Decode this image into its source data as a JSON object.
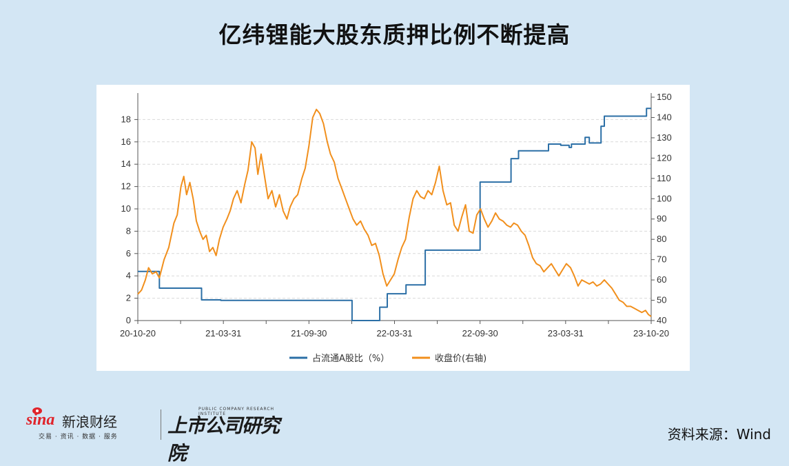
{
  "title": "亿纬锂能大股东质押比例不断提高",
  "chart_data": {
    "type": "line",
    "x_ticks": [
      "20-10-20",
      "21-03-31",
      "21-09-30",
      "22-03-31",
      "22-09-30",
      "23-03-31",
      "23-10-20"
    ],
    "y_left_ticks": [
      "0",
      "2",
      "4",
      "6",
      "8",
      "10",
      "12",
      "14",
      "16",
      "18"
    ],
    "y_right_ticks": [
      "40",
      "50",
      "60",
      "70",
      "80",
      "90",
      "100",
      "110",
      "120",
      "130",
      "140",
      "150"
    ],
    "y_left_range": [
      0,
      20
    ],
    "y_right_range": [
      40,
      150
    ],
    "grid": "horizontal dashed",
    "legend_position": "bottom",
    "series": [
      {
        "name": "占流通A股比（%）",
        "axis": "left",
        "color": "#2b6fa6",
        "step": true,
        "points": [
          [
            "2020-10-20",
            4.4
          ],
          [
            "2020-12-05",
            4.4
          ],
          [
            "2020-12-05",
            2.9
          ],
          [
            "2021-03-05",
            2.9
          ],
          [
            "2021-03-05",
            1.85
          ],
          [
            "2021-04-15",
            1.85
          ],
          [
            "2021-04-15",
            1.8
          ],
          [
            "2022-01-20",
            1.8
          ],
          [
            "2022-01-20",
            0.0
          ],
          [
            "2022-03-20",
            0.0
          ],
          [
            "2022-03-20",
            1.2
          ],
          [
            "2022-04-05",
            1.2
          ],
          [
            "2022-04-05",
            2.4
          ],
          [
            "2022-05-15",
            2.4
          ],
          [
            "2022-05-15",
            3.2
          ],
          [
            "2022-06-25",
            3.2
          ],
          [
            "2022-06-25",
            6.3
          ],
          [
            "2022-10-20",
            6.3
          ],
          [
            "2022-10-20",
            12.4
          ],
          [
            "2022-12-25",
            12.4
          ],
          [
            "2022-12-25",
            14.5
          ],
          [
            "2023-01-10",
            14.5
          ],
          [
            "2023-01-10",
            15.2
          ],
          [
            "2023-03-15",
            15.2
          ],
          [
            "2023-03-15",
            15.8
          ],
          [
            "2023-04-10",
            15.8
          ],
          [
            "2023-04-10",
            15.7
          ],
          [
            "2023-04-28",
            15.7
          ],
          [
            "2023-04-28",
            15.5
          ],
          [
            "2023-05-03",
            15.5
          ],
          [
            "2023-05-03",
            15.8
          ],
          [
            "2023-06-01",
            15.8
          ],
          [
            "2023-06-01",
            16.4
          ],
          [
            "2023-06-10",
            16.4
          ],
          [
            "2023-06-10",
            15.9
          ],
          [
            "2023-07-05",
            15.9
          ],
          [
            "2023-07-05",
            17.4
          ],
          [
            "2023-07-12",
            17.4
          ],
          [
            "2023-07-12",
            18.3
          ],
          [
            "2023-10-10",
            18.3
          ],
          [
            "2023-10-10",
            19.0
          ],
          [
            "2023-10-20",
            19.0
          ]
        ]
      },
      {
        "name": "收盘价(右轴)",
        "axis": "right",
        "color": "#f18f1c",
        "step": false,
        "points": [
          [
            "2020-10-20",
            53
          ],
          [
            "2020-10-28",
            55
          ],
          [
            "2020-11-05",
            60
          ],
          [
            "2020-11-12",
            66
          ],
          [
            "2020-11-20",
            63
          ],
          [
            "2020-11-28",
            64
          ],
          [
            "2020-12-05",
            61
          ],
          [
            "2020-12-15",
            70
          ],
          [
            "2020-12-25",
            76
          ],
          [
            "2021-01-05",
            88
          ],
          [
            "2021-01-12",
            92
          ],
          [
            "2021-01-20",
            106
          ],
          [
            "2021-01-26",
            111
          ],
          [
            "2021-02-01",
            102
          ],
          [
            "2021-02-08",
            108
          ],
          [
            "2021-02-15",
            100
          ],
          [
            "2021-02-22",
            89
          ],
          [
            "2021-03-01",
            84
          ],
          [
            "2021-03-08",
            80
          ],
          [
            "2021-03-15",
            82
          ],
          [
            "2021-03-22",
            74
          ],
          [
            "2021-03-29",
            76
          ],
          [
            "2021-04-05",
            72
          ],
          [
            "2021-04-12",
            80
          ],
          [
            "2021-04-20",
            86
          ],
          [
            "2021-04-28",
            90
          ],
          [
            "2021-05-05",
            94
          ],
          [
            "2021-05-12",
            100
          ],
          [
            "2021-05-20",
            104
          ],
          [
            "2021-05-28",
            98
          ],
          [
            "2021-06-05",
            107
          ],
          [
            "2021-06-12",
            114
          ],
          [
            "2021-06-20",
            128
          ],
          [
            "2021-06-27",
            125
          ],
          [
            "2021-07-03",
            112
          ],
          [
            "2021-07-10",
            122
          ],
          [
            "2021-07-18",
            110
          ],
          [
            "2021-07-25",
            100
          ],
          [
            "2021-08-02",
            104
          ],
          [
            "2021-08-10",
            96
          ],
          [
            "2021-08-18",
            102
          ],
          [
            "2021-08-26",
            94
          ],
          [
            "2021-09-03",
            90
          ],
          [
            "2021-09-10",
            96
          ],
          [
            "2021-09-18",
            100
          ],
          [
            "2021-09-26",
            102
          ],
          [
            "2021-10-05",
            110
          ],
          [
            "2021-10-12",
            115
          ],
          [
            "2021-10-20",
            126
          ],
          [
            "2021-10-28",
            140
          ],
          [
            "2021-11-05",
            144
          ],
          [
            "2021-11-12",
            142
          ],
          [
            "2021-11-20",
            137
          ],
          [
            "2021-11-28",
            128
          ],
          [
            "2021-12-05",
            122
          ],
          [
            "2021-12-13",
            118
          ],
          [
            "2021-12-21",
            110
          ],
          [
            "2021-12-29",
            105
          ],
          [
            "2022-01-06",
            100
          ],
          [
            "2022-01-14",
            95
          ],
          [
            "2022-01-22",
            90
          ],
          [
            "2022-01-30",
            87
          ],
          [
            "2022-02-07",
            89
          ],
          [
            "2022-02-15",
            85
          ],
          [
            "2022-02-23",
            82
          ],
          [
            "2022-03-03",
            77
          ],
          [
            "2022-03-11",
            78
          ],
          [
            "2022-03-19",
            72
          ],
          [
            "2022-03-27",
            63
          ],
          [
            "2022-04-04",
            57
          ],
          [
            "2022-04-12",
            60
          ],
          [
            "2022-04-20",
            63
          ],
          [
            "2022-04-28",
            70
          ],
          [
            "2022-05-06",
            76
          ],
          [
            "2022-05-14",
            80
          ],
          [
            "2022-05-22",
            91
          ],
          [
            "2022-05-30",
            100
          ],
          [
            "2022-06-07",
            104
          ],
          [
            "2022-06-15",
            101
          ],
          [
            "2022-06-23",
            100
          ],
          [
            "2022-07-01",
            104
          ],
          [
            "2022-07-09",
            102
          ],
          [
            "2022-07-17",
            108
          ],
          [
            "2022-07-25",
            116
          ],
          [
            "2022-08-02",
            104
          ],
          [
            "2022-08-10",
            97
          ],
          [
            "2022-08-18",
            98
          ],
          [
            "2022-08-26",
            87
          ],
          [
            "2022-09-03",
            84
          ],
          [
            "2022-09-11",
            91
          ],
          [
            "2022-09-19",
            97
          ],
          [
            "2022-09-27",
            84
          ],
          [
            "2022-10-05",
            83
          ],
          [
            "2022-10-13",
            92
          ],
          [
            "2022-10-21",
            95
          ],
          [
            "2022-10-29",
            90
          ],
          [
            "2022-11-06",
            86
          ],
          [
            "2022-11-14",
            89
          ],
          [
            "2022-11-22",
            93
          ],
          [
            "2022-11-30",
            90
          ],
          [
            "2022-12-08",
            89
          ],
          [
            "2022-12-16",
            87
          ],
          [
            "2022-12-24",
            86
          ],
          [
            "2022-12-31",
            88
          ],
          [
            "2023-01-08",
            87
          ],
          [
            "2023-01-16",
            84
          ],
          [
            "2023-01-24",
            82
          ],
          [
            "2023-02-01",
            77
          ],
          [
            "2023-02-09",
            71
          ],
          [
            "2023-02-17",
            68
          ],
          [
            "2023-02-25",
            67
          ],
          [
            "2023-03-05",
            64
          ],
          [
            "2023-03-13",
            66
          ],
          [
            "2023-03-21",
            68
          ],
          [
            "2023-03-29",
            65
          ],
          [
            "2023-04-06",
            62
          ],
          [
            "2023-04-14",
            65
          ],
          [
            "2023-04-22",
            68
          ],
          [
            "2023-05-01",
            66
          ],
          [
            "2023-05-09",
            62
          ],
          [
            "2023-05-17",
            57
          ],
          [
            "2023-05-25",
            60
          ],
          [
            "2023-06-02",
            59
          ],
          [
            "2023-06-10",
            58
          ],
          [
            "2023-06-18",
            59
          ],
          [
            "2023-06-26",
            57
          ],
          [
            "2023-07-04",
            58
          ],
          [
            "2023-07-12",
            60
          ],
          [
            "2023-07-20",
            58
          ],
          [
            "2023-07-28",
            56
          ],
          [
            "2023-08-05",
            53
          ],
          [
            "2023-08-13",
            50
          ],
          [
            "2023-08-21",
            49
          ],
          [
            "2023-08-29",
            47
          ],
          [
            "2023-09-06",
            47
          ],
          [
            "2023-09-14",
            46
          ],
          [
            "2023-09-22",
            45
          ],
          [
            "2023-09-30",
            44
          ],
          [
            "2023-10-08",
            45
          ],
          [
            "2023-10-14",
            43
          ],
          [
            "2023-10-20",
            42
          ]
        ]
      }
    ]
  },
  "footer": {
    "sina_brand": "sina",
    "sina_name": "新浪财经",
    "sina_sub": "交易 · 资讯 · 数据 · 服务",
    "institute_en": "PUBLIC COMPANY RESEARCH INSTITUTE",
    "institute_cn": "上市公司研究院",
    "source": "资料来源：Wind"
  }
}
